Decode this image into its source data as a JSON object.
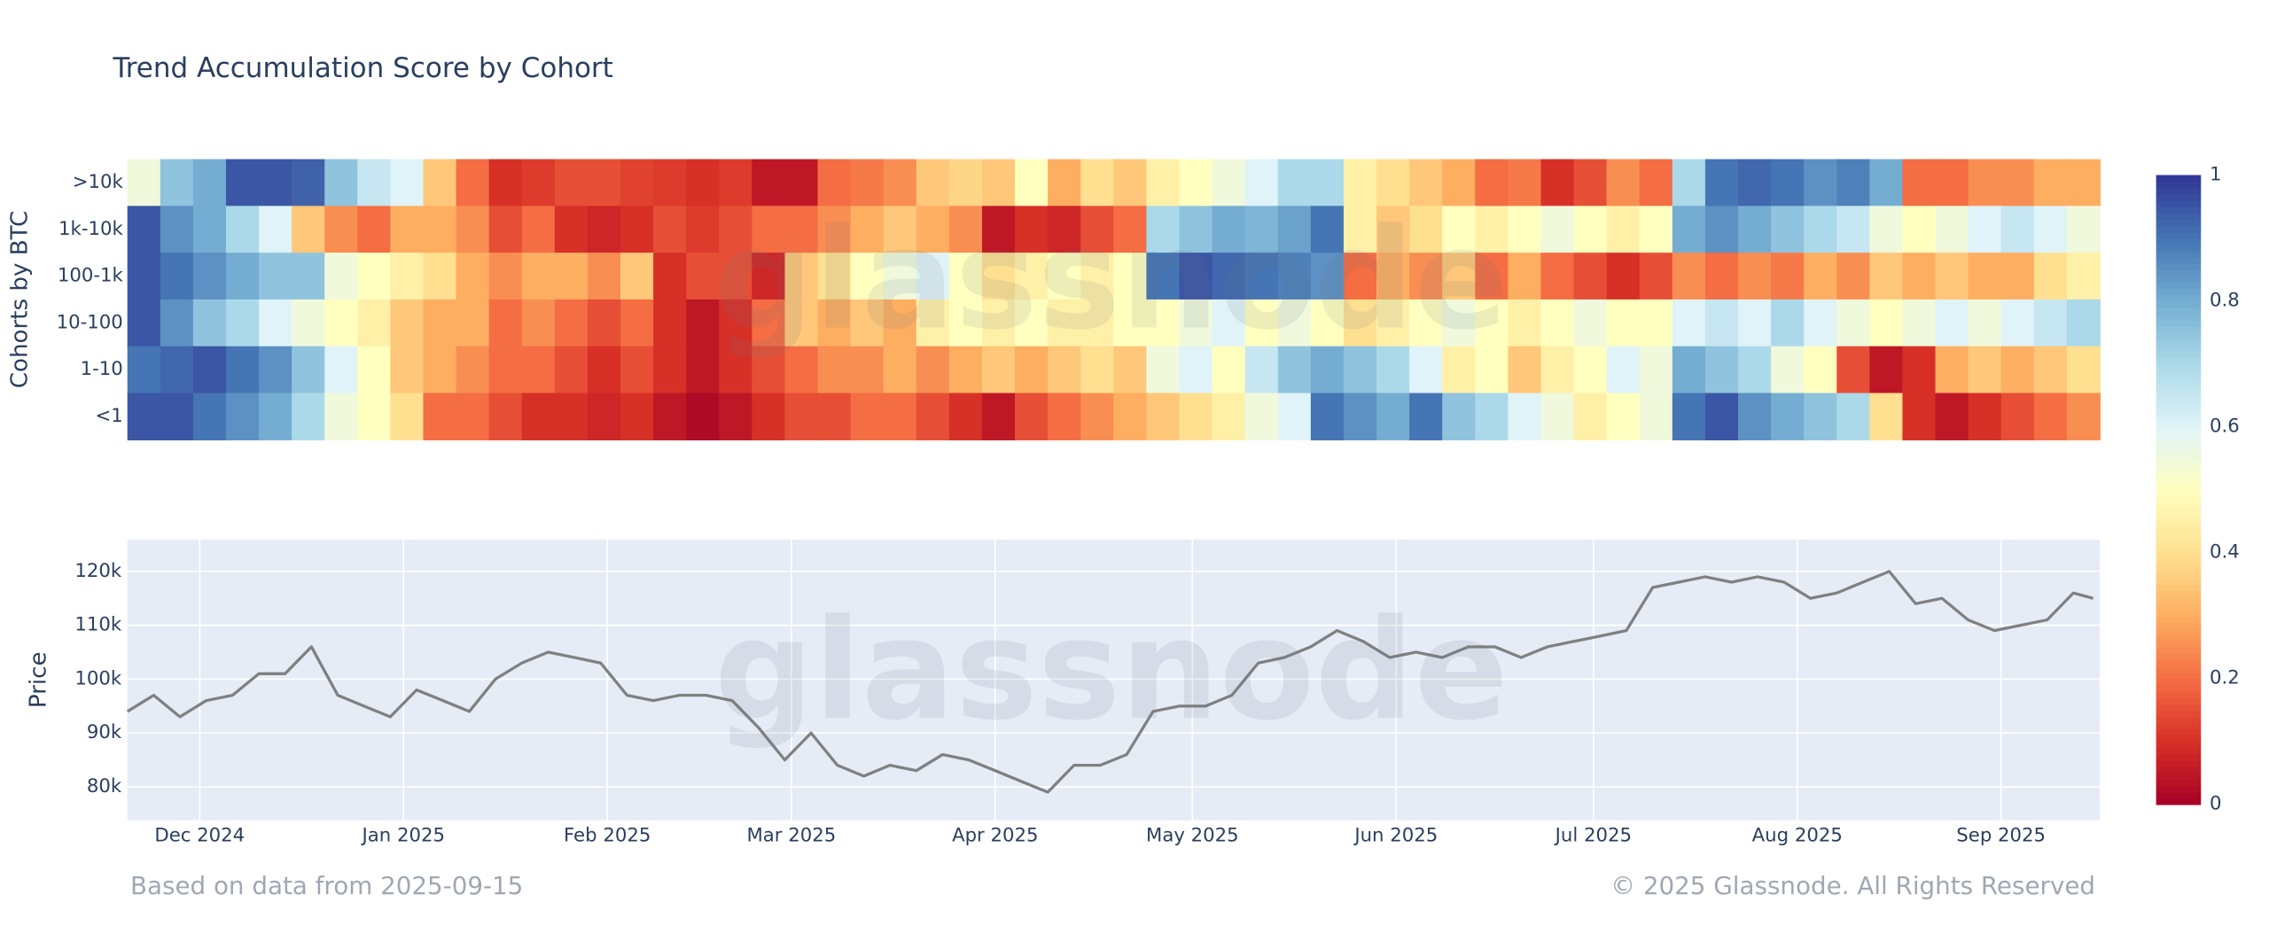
{
  "chart_data": [
    {
      "type": "heatmap",
      "title": "Trend Accumulation Score by Cohort",
      "y_label": "Cohorts by BTC",
      "categories": [
        ">10k",
        "1k-10k",
        "100-1k",
        "10-100",
        "1-10",
        "<1"
      ],
      "x": [
        0,
        5,
        10,
        15,
        20,
        25,
        30,
        35,
        40,
        45,
        50,
        55,
        60,
        65,
        70,
        75,
        80,
        85,
        90,
        95,
        100,
        105,
        110,
        115,
        120,
        125,
        130,
        135,
        140,
        145,
        150,
        155,
        160,
        165,
        170,
        175,
        180,
        185,
        190,
        195,
        200,
        205,
        210,
        215,
        220,
        225,
        230,
        235,
        240,
        245,
        250,
        255,
        260,
        265,
        270,
        275,
        280,
        285,
        290,
        295
      ],
      "xlim": [
        0,
        300
      ],
      "z": [
        [
          0.55,
          0.75,
          0.8,
          0.95,
          0.95,
          0.93,
          0.75,
          0.65,
          0.6,
          0.35,
          0.2,
          0.1,
          0.12,
          0.15,
          0.15,
          0.13,
          0.12,
          0.1,
          0.12,
          0.05,
          0.05,
          0.2,
          0.22,
          0.25,
          0.35,
          0.38,
          0.35,
          0.5,
          0.3,
          0.4,
          0.35,
          0.45,
          0.5,
          0.55,
          0.6,
          0.7,
          0.7,
          0.45,
          0.4,
          0.35,
          0.3,
          0.2,
          0.22,
          0.1,
          0.15,
          0.25,
          0.2,
          0.7,
          0.9,
          0.92,
          0.9,
          0.85,
          0.88,
          0.8,
          0.2,
          0.2,
          0.25,
          0.25,
          0.3,
          0.3
        ],
        [
          0.95,
          0.85,
          0.8,
          0.7,
          0.6,
          0.35,
          0.25,
          0.2,
          0.3,
          0.3,
          0.25,
          0.15,
          0.2,
          0.1,
          0.08,
          0.1,
          0.15,
          0.12,
          0.15,
          0.2,
          0.2,
          0.25,
          0.3,
          0.35,
          0.3,
          0.25,
          0.05,
          0.1,
          0.08,
          0.15,
          0.2,
          0.7,
          0.75,
          0.8,
          0.78,
          0.82,
          0.9,
          0.45,
          0.35,
          0.4,
          0.5,
          0.45,
          0.5,
          0.55,
          0.5,
          0.45,
          0.5,
          0.8,
          0.85,
          0.8,
          0.75,
          0.7,
          0.65,
          0.55,
          0.5,
          0.55,
          0.6,
          0.65,
          0.6,
          0.55
        ],
        [
          0.95,
          0.9,
          0.85,
          0.8,
          0.75,
          0.75,
          0.55,
          0.5,
          0.45,
          0.4,
          0.3,
          0.25,
          0.3,
          0.3,
          0.25,
          0.35,
          0.1,
          0.15,
          0.15,
          0.08,
          0.35,
          0.4,
          0.5,
          0.55,
          0.6,
          0.5,
          0.4,
          0.45,
          0.5,
          0.45,
          0.5,
          0.9,
          0.95,
          0.92,
          0.9,
          0.88,
          0.85,
          0.2,
          0.3,
          0.25,
          0.35,
          0.2,
          0.3,
          0.2,
          0.15,
          0.1,
          0.15,
          0.25,
          0.2,
          0.25,
          0.22,
          0.3,
          0.25,
          0.35,
          0.3,
          0.35,
          0.3,
          0.3,
          0.4,
          0.45
        ],
        [
          0.95,
          0.85,
          0.75,
          0.7,
          0.6,
          0.55,
          0.5,
          0.45,
          0.35,
          0.3,
          0.3,
          0.2,
          0.25,
          0.2,
          0.15,
          0.2,
          0.1,
          0.05,
          0.1,
          0.2,
          0.35,
          0.3,
          0.35,
          0.3,
          0.45,
          0.5,
          0.45,
          0.5,
          0.45,
          0.45,
          0.5,
          0.5,
          0.55,
          0.6,
          0.5,
          0.55,
          0.5,
          0.4,
          0.45,
          0.5,
          0.55,
          0.5,
          0.45,
          0.5,
          0.55,
          0.5,
          0.5,
          0.6,
          0.65,
          0.6,
          0.7,
          0.6,
          0.55,
          0.5,
          0.55,
          0.6,
          0.55,
          0.6,
          0.65,
          0.7
        ],
        [
          0.9,
          0.92,
          0.95,
          0.9,
          0.85,
          0.75,
          0.6,
          0.5,
          0.35,
          0.3,
          0.25,
          0.2,
          0.2,
          0.15,
          0.1,
          0.15,
          0.1,
          0.05,
          0.1,
          0.15,
          0.2,
          0.25,
          0.25,
          0.3,
          0.25,
          0.3,
          0.35,
          0.3,
          0.35,
          0.4,
          0.35,
          0.55,
          0.6,
          0.5,
          0.65,
          0.75,
          0.8,
          0.75,
          0.7,
          0.6,
          0.45,
          0.5,
          0.35,
          0.45,
          0.5,
          0.6,
          0.55,
          0.8,
          0.75,
          0.7,
          0.55,
          0.5,
          0.15,
          0.05,
          0.1,
          0.3,
          0.35,
          0.3,
          0.35,
          0.4
        ],
        [
          0.95,
          0.95,
          0.9,
          0.85,
          0.8,
          0.7,
          0.55,
          0.5,
          0.4,
          0.2,
          0.2,
          0.15,
          0.1,
          0.1,
          0.08,
          0.1,
          0.05,
          0.02,
          0.05,
          0.1,
          0.15,
          0.15,
          0.2,
          0.2,
          0.15,
          0.1,
          0.05,
          0.15,
          0.2,
          0.25,
          0.3,
          0.35,
          0.4,
          0.45,
          0.55,
          0.6,
          0.9,
          0.85,
          0.8,
          0.9,
          0.75,
          0.7,
          0.6,
          0.55,
          0.45,
          0.5,
          0.55,
          0.9,
          0.95,
          0.85,
          0.8,
          0.75,
          0.7,
          0.4,
          0.1,
          0.05,
          0.1,
          0.15,
          0.2,
          0.25
        ]
      ],
      "zlim": [
        0,
        1
      ],
      "colorbar_ticks": [
        0,
        0.2,
        0.4,
        0.6,
        0.8,
        1
      ],
      "colorscale": [
        "#a50026",
        "#d73027",
        "#f46d43",
        "#fdae61",
        "#fee090",
        "#ffffbf",
        "#e0f3f8",
        "#abd9e9",
        "#74add1",
        "#4575b4",
        "#313695"
      ]
    },
    {
      "type": "line",
      "y_label": "Price",
      "x": [
        0,
        4,
        8,
        12,
        16,
        20,
        24,
        28,
        32,
        36,
        40,
        44,
        48,
        52,
        56,
        60,
        64,
        68,
        72,
        76,
        80,
        84,
        88,
        92,
        96,
        100,
        104,
        108,
        112,
        116,
        120,
        124,
        128,
        132,
        136,
        140,
        144,
        148,
        152,
        156,
        160,
        164,
        168,
        172,
        176,
        180,
        184,
        188,
        192,
        196,
        200,
        204,
        208,
        212,
        216,
        220,
        224,
        228,
        232,
        236,
        240,
        244,
        248,
        252,
        256,
        260,
        264,
        268,
        272,
        276,
        280,
        284,
        288,
        292,
        296,
        299
      ],
      "xlim": [
        0,
        300
      ],
      "xticks": [
        {
          "value": 11,
          "label": "Dec 2024"
        },
        {
          "value": 42,
          "label": "Jan 2025"
        },
        {
          "value": 73,
          "label": "Feb 2025"
        },
        {
          "value": 101,
          "label": "Mar 2025"
        },
        {
          "value": 132,
          "label": "Apr 2025"
        },
        {
          "value": 162,
          "label": "May 2025"
        },
        {
          "value": 193,
          "label": "Jun 2025"
        },
        {
          "value": 223,
          "label": "Jul 2025"
        },
        {
          "value": 254,
          "label": "Aug 2025"
        },
        {
          "value": 285,
          "label": "Sep 2025"
        }
      ],
      "ylim": [
        73800,
        125900
      ],
      "yticks": [
        {
          "value": 80000,
          "label": "80k"
        },
        {
          "value": 90000,
          "label": "90k"
        },
        {
          "value": 100000,
          "label": "100k"
        },
        {
          "value": 110000,
          "label": "110k"
        },
        {
          "value": 120000,
          "label": "120k"
        }
      ],
      "grid": true,
      "series": [
        {
          "color": "#808080",
          "values": [
            94000,
            97000,
            93000,
            96000,
            97000,
            101000,
            101000,
            106000,
            97000,
            95000,
            93000,
            98000,
            96000,
            94000,
            100000,
            103000,
            105000,
            104000,
            103000,
            97000,
            96000,
            97000,
            97000,
            96000,
            91000,
            85000,
            90000,
            84000,
            82000,
            84000,
            83000,
            86000,
            85000,
            83000,
            81000,
            79000,
            84000,
            84000,
            86000,
            94000,
            95000,
            95000,
            97000,
            103000,
            104000,
            106000,
            109000,
            107000,
            104000,
            105000,
            104000,
            106000,
            106000,
            104000,
            106000,
            107000,
            108000,
            109000,
            117000,
            118000,
            119000,
            118000,
            119000,
            118000,
            115000,
            116000,
            118000,
            120000,
            114000,
            115000,
            111000,
            109000,
            110000,
            111000,
            116000,
            115000
          ]
        }
      ]
    }
  ],
  "watermark": "glassnode",
  "footer": {
    "left": "Based on data from 2025-09-15",
    "right": "© 2025 Glassnode. All Rights Reserved"
  }
}
